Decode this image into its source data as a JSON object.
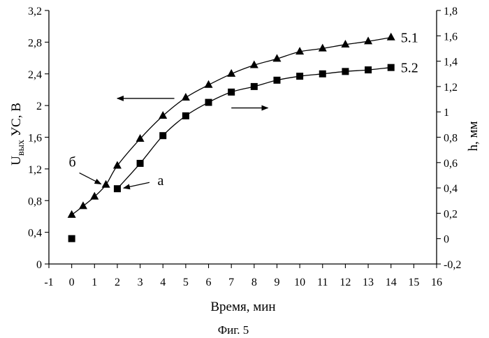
{
  "chart_data": {
    "type": "line",
    "xlabel": "Время, мин",
    "ylabel_left": {
      "main": "U",
      "subscript": "вых",
      "rest": " УС, В"
    },
    "ylabel_right": "h,  мм",
    "caption": "Фиг. 5",
    "xlim": [
      -1,
      16
    ],
    "ylim_left": [
      0,
      3.2
    ],
    "ylim_right": [
      -0.2,
      1.8
    ],
    "x_ticks": [
      "-1",
      "0",
      "1",
      "2",
      "3",
      "4",
      "5",
      "6",
      "7",
      "8",
      "9",
      "10",
      "11",
      "12",
      "13",
      "14",
      "15",
      "16"
    ],
    "y_left_ticks": [
      "0",
      "0,4",
      "0,8",
      "1,2",
      "1,6",
      "2",
      "2,4",
      "2,8",
      "3,2"
    ],
    "y_right_ticks": [
      "-0,2",
      "0",
      "0,2",
      "0,4",
      "0,6",
      "0,8",
      "1",
      "1,2",
      "1,4",
      "1,6",
      "1,8"
    ],
    "grid": false,
    "series": [
      {
        "name": "5.1",
        "marker": "triangle",
        "axis": "left",
        "x": [
          0,
          0.5,
          1,
          1.5,
          2,
          3,
          4,
          5,
          6,
          7,
          8,
          9,
          10,
          11,
          12,
          13,
          14
        ],
        "y": [
          0.62,
          0.73,
          0.85,
          1.0,
          1.24,
          1.58,
          1.87,
          2.1,
          2.26,
          2.4,
          2.51,
          2.59,
          2.68,
          2.72,
          2.77,
          2.81,
          2.86
        ]
      },
      {
        "name": "5.2",
        "marker": "square",
        "axis": "left",
        "x": [
          0,
          2,
          3,
          4,
          5,
          6,
          7,
          8,
          9,
          10,
          11,
          12,
          13,
          14
        ],
        "y": [
          0.32,
          0.95,
          1.27,
          1.62,
          1.87,
          2.04,
          2.17,
          2.24,
          2.32,
          2.37,
          2.4,
          2.43,
          2.45,
          2.48
        ]
      }
    ],
    "annotations": [
      {
        "text": "б",
        "x": 1.5,
        "y": 1.0
      },
      {
        "text": "а",
        "x": 2,
        "y": 0.95
      }
    ],
    "direction_arrows": [
      {
        "direction": "left",
        "x_from": 4.5,
        "x_to": 2,
        "y": 2.09
      },
      {
        "direction": "right",
        "x_from": 7,
        "x_to": 8.6,
        "y": 1.97
      }
    ]
  }
}
